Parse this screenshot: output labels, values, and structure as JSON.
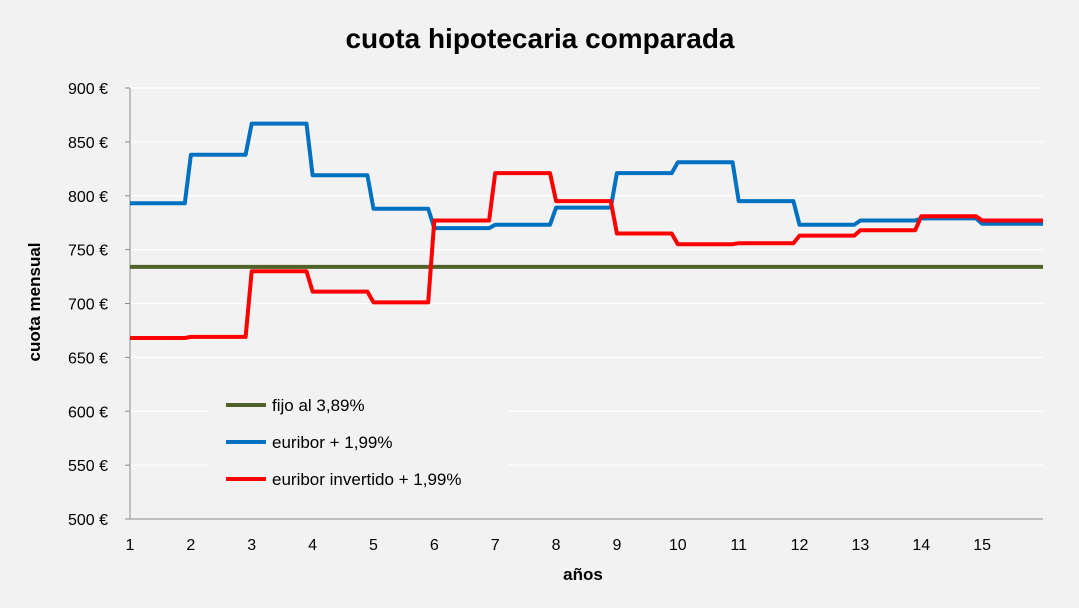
{
  "chart_data": {
    "type": "line",
    "title": "cuota hipotecaria comparada",
    "xlabel": "años",
    "ylabel": "cuota mensual",
    "xlim": [
      1,
      16
    ],
    "ylim": [
      500,
      900
    ],
    "y_ticks": [
      "500 €",
      "550 €",
      "600 €",
      "650 €",
      "700 €",
      "750 €",
      "800 €",
      "850 €",
      "900 €"
    ],
    "x_ticks": [
      "1",
      "2",
      "3",
      "4",
      "5",
      "6",
      "7",
      "8",
      "9",
      "10",
      "11",
      "12",
      "13",
      "14",
      "15"
    ],
    "grid": "horizontal",
    "legend_position": "lower-left",
    "series": [
      {
        "name": "fijo al 3,89%",
        "color": "#4f6228",
        "points": [
          [
            1,
            734
          ],
          [
            16,
            734
          ]
        ]
      },
      {
        "name": "euribor + 1,99%",
        "color": "#0070c0",
        "points": [
          [
            1,
            793
          ],
          [
            1.9,
            793
          ],
          [
            2,
            838
          ],
          [
            2.9,
            838
          ],
          [
            3,
            867
          ],
          [
            3.9,
            867
          ],
          [
            4,
            819
          ],
          [
            4.9,
            819
          ],
          [
            5,
            788
          ],
          [
            5.9,
            788
          ],
          [
            6,
            770
          ],
          [
            6.9,
            770
          ],
          [
            7,
            773
          ],
          [
            7.9,
            773
          ],
          [
            8,
            789
          ],
          [
            8.9,
            789
          ],
          [
            9,
            821
          ],
          [
            9.9,
            821
          ],
          [
            10,
            831
          ],
          [
            10.9,
            831
          ],
          [
            11,
            795
          ],
          [
            11.9,
            795
          ],
          [
            12,
            773
          ],
          [
            12.9,
            773
          ],
          [
            13,
            777
          ],
          [
            13.9,
            777
          ],
          [
            14,
            779
          ],
          [
            14.9,
            779
          ],
          [
            15,
            774
          ],
          [
            16,
            774
          ]
        ]
      },
      {
        "name": "euribor invertido + 1,99%",
        "color": "#ff0000",
        "points": [
          [
            1,
            668
          ],
          [
            1.9,
            668
          ],
          [
            2,
            669
          ],
          [
            2.9,
            669
          ],
          [
            3,
            730
          ],
          [
            3.9,
            730
          ],
          [
            4,
            711
          ],
          [
            4.9,
            711
          ],
          [
            5,
            701
          ],
          [
            5.9,
            701
          ],
          [
            6,
            777
          ],
          [
            6.9,
            777
          ],
          [
            7,
            821
          ],
          [
            7.9,
            821
          ],
          [
            8,
            795
          ],
          [
            8.9,
            795
          ],
          [
            9,
            765
          ],
          [
            9.9,
            765
          ],
          [
            10,
            755
          ],
          [
            10.9,
            755
          ],
          [
            11,
            756
          ],
          [
            11.9,
            756
          ],
          [
            12,
            763
          ],
          [
            12.9,
            763
          ],
          [
            13,
            768
          ],
          [
            13.9,
            768
          ],
          [
            14,
            781
          ],
          [
            14.9,
            781
          ],
          [
            15,
            777
          ],
          [
            16,
            777
          ]
        ]
      }
    ]
  }
}
